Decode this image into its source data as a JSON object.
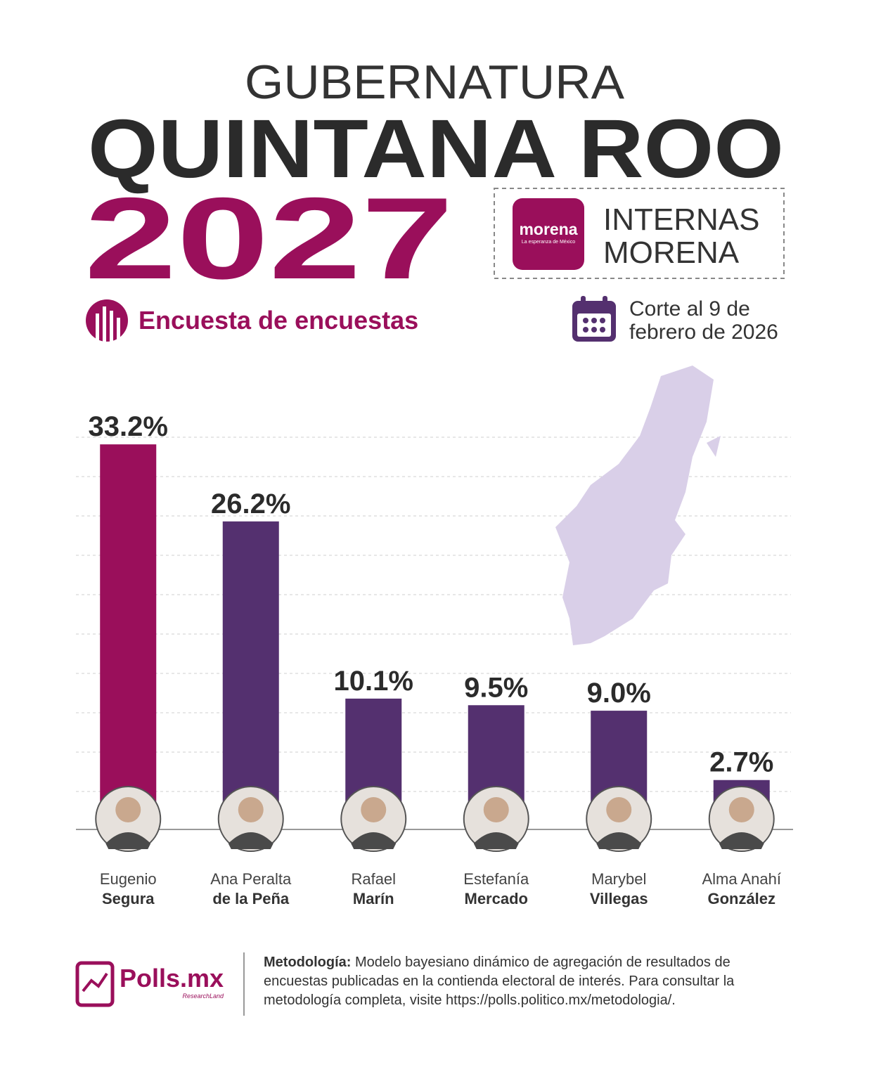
{
  "header": {
    "kicker": "GUBERNATURA",
    "state": "QUINTANA ROO",
    "year": "2027",
    "party_logo": "morena",
    "party_tagline": "La esperanza de México",
    "badge": [
      "INTERNAS",
      "MORENA"
    ],
    "subtitle": "Encuesta de encuestas",
    "cutoff": [
      "Corte al 9 de",
      "febrero de 2026"
    ]
  },
  "chart_data": {
    "type": "bar",
    "categories": [
      [
        "Eugenio",
        "Segura"
      ],
      [
        "Ana Peralta",
        "de la Peña"
      ],
      [
        "Rafael",
        "Marín"
      ],
      [
        "Estefanía",
        "Mercado"
      ],
      [
        "Marybel",
        "Villegas"
      ],
      [
        "Alma Anahí",
        "González"
      ]
    ],
    "values": [
      33.2,
      26.2,
      10.1,
      9.5,
      9.0,
      2.7
    ],
    "value_labels": [
      "33.2%",
      "26.2%",
      "10.1%",
      "9.5%",
      "9.0%",
      "2.7%"
    ],
    "colors": [
      "#9a0f5b",
      "#54306f",
      "#54306f",
      "#54306f",
      "#54306f",
      "#54306f"
    ],
    "ylim": [
      0,
      35
    ]
  },
  "footer": {
    "brand": "Polls.mx",
    "brand_sub": "ResearchLand",
    "method_label": "Metodología:",
    "method_lines": [
      " Modelo bayesiano dinámico de agregación de resultados de",
      "encuestas publicadas en la contienda electoral de interés. Para consultar la",
      "metodología completa, visite https://polls.politico.mx/metodologia/."
    ]
  }
}
